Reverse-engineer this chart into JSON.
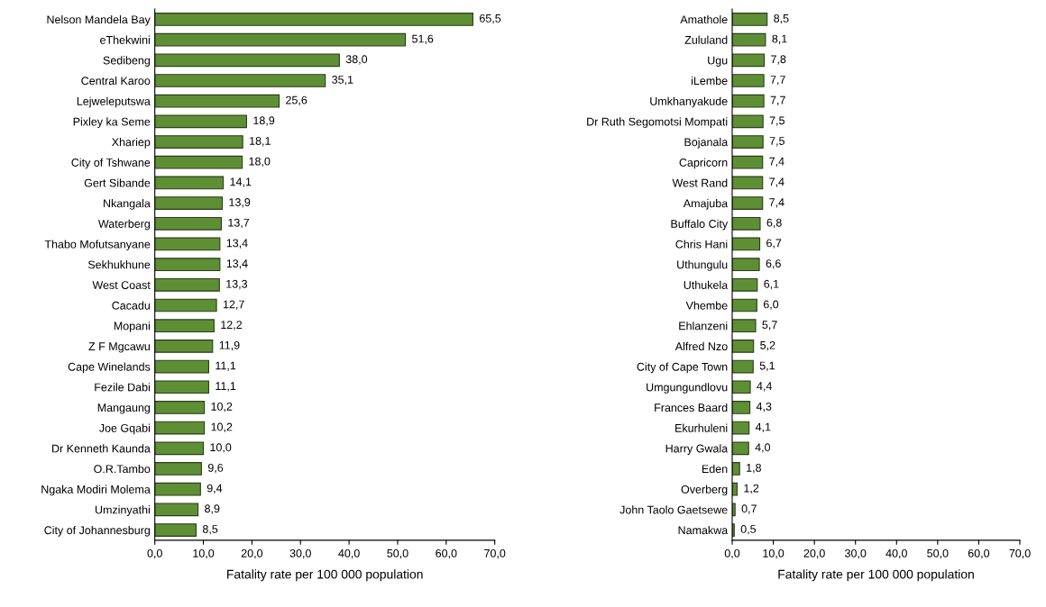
{
  "chart_data": [
    {
      "type": "bar",
      "orientation": "horizontal",
      "xlabel": "Fatality rate per 100 000 population",
      "color": "#5e8f35",
      "categories": [
        "Nelson Mandela Bay",
        "eThekwini",
        "Sedibeng",
        "Central Karoo",
        "Lejweleputswa",
        "Pixley ka Seme",
        "Xhariep",
        "City of Tshwane",
        "Gert Sibande",
        "Nkangala",
        "Waterberg",
        "Thabo Mofutsanyane",
        "Sekhukhune",
        "West Coast",
        "Cacadu",
        "Mopani",
        "Z F Mgcawu",
        "Cape Winelands",
        "Fezile Dabi",
        "Mangaung",
        "Joe Gqabi",
        "Dr Kenneth Kaunda",
        "O.R.Tambo",
        "Ngaka Modiri Molema",
        "Umzinyathi",
        "City of Johannesburg"
      ],
      "values": [
        65.5,
        51.6,
        38.0,
        35.1,
        25.6,
        18.9,
        18.1,
        18.0,
        14.1,
        13.9,
        13.7,
        13.4,
        13.4,
        13.3,
        12.7,
        12.2,
        11.9,
        11.1,
        11.1,
        10.2,
        10.2,
        10.0,
        9.6,
        9.4,
        8.9,
        8.5
      ],
      "value_labels": [
        "65,5",
        "51,6",
        "38,0",
        "35,1",
        "25,6",
        "18,9",
        "18,1",
        "18,0",
        "14,1",
        "13,9",
        "13,7",
        "13,4",
        "13,4",
        "13,3",
        "12,7",
        "12,2",
        "11,9",
        "11,1",
        "11,1",
        "10,2",
        "10,2",
        "10,0",
        "9,6",
        "9,4",
        "8,9",
        "8,5"
      ],
      "xlim": [
        0,
        70
      ],
      "xticks": [
        {
          "value": 0,
          "label": "0,0"
        },
        {
          "value": 10,
          "label": "10,0"
        },
        {
          "value": 20,
          "label": "20,0"
        },
        {
          "value": 30,
          "label": "30,0"
        },
        {
          "value": 40,
          "label": "40,0"
        },
        {
          "value": 50,
          "label": "50,0"
        },
        {
          "value": 60,
          "label": "60,0"
        },
        {
          "value": 70,
          "label": "70,0"
        }
      ],
      "grid": false,
      "legend": false
    },
    {
      "type": "bar",
      "orientation": "horizontal",
      "xlabel": "Fatality rate per 100 000 population",
      "color": "#5e8f35",
      "categories": [
        "Amathole",
        "Zululand",
        "Ugu",
        "iLembe",
        "Umkhanyakude",
        "Dr Ruth Segomotsi Mompati",
        "Bojanala",
        "Capricorn",
        "West Rand",
        "Amajuba",
        "Buffalo City",
        "Chris Hani",
        "Uthungulu",
        "Uthukela",
        "Vhembe",
        "Ehlanzeni",
        "Alfred Nzo",
        "City of Cape Town",
        "Umgungundlovu",
        "Frances Baard",
        "Ekurhuleni",
        "Harry Gwala",
        "Eden",
        "Overberg",
        "John Taolo Gaetsewe",
        "Namakwa"
      ],
      "values": [
        8.5,
        8.1,
        7.8,
        7.7,
        7.7,
        7.5,
        7.5,
        7.4,
        7.4,
        7.4,
        6.8,
        6.7,
        6.6,
        6.1,
        6.0,
        5.7,
        5.2,
        5.1,
        4.4,
        4.3,
        4.1,
        4.0,
        1.8,
        1.2,
        0.7,
        0.5
      ],
      "value_labels": [
        "8,5",
        "8,1",
        "7,8",
        "7,7",
        "7,7",
        "7,5",
        "7,5",
        "7,4",
        "7,4",
        "7,4",
        "6,8",
        "6,7",
        "6,6",
        "6,1",
        "6,0",
        "5,7",
        "5,2",
        "5,1",
        "4,4",
        "4,3",
        "4,1",
        "4,0",
        "1,8",
        "1,2",
        "0,7",
        "0,5"
      ],
      "xlim": [
        0,
        70
      ],
      "xticks": [
        {
          "value": 0,
          "label": "0,0"
        },
        {
          "value": 10,
          "label": "10,0"
        },
        {
          "value": 20,
          "label": "20,0"
        },
        {
          "value": 30,
          "label": "30,0"
        },
        {
          "value": 40,
          "label": "40,0"
        },
        {
          "value": 50,
          "label": "50,0"
        },
        {
          "value": 60,
          "label": "60,0"
        },
        {
          "value": 70,
          "label": "70,0"
        }
      ],
      "grid": false,
      "legend": false
    }
  ]
}
